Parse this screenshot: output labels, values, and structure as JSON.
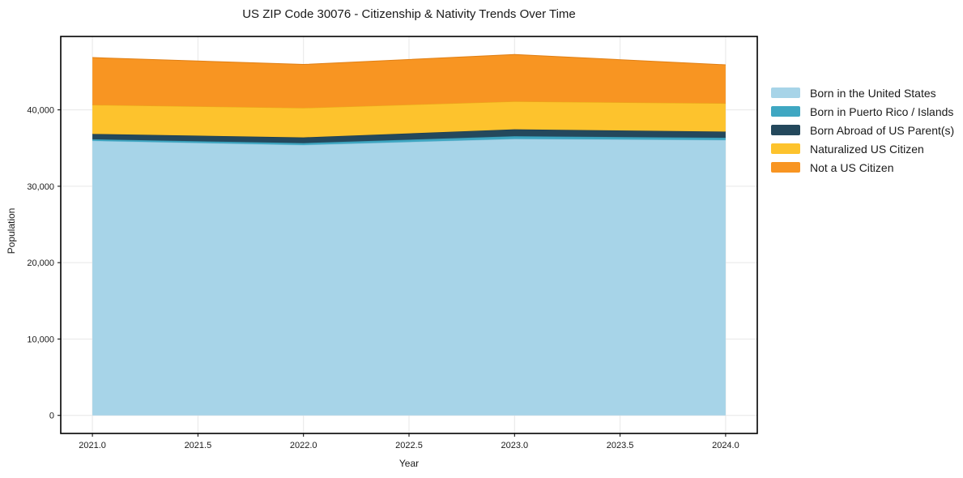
{
  "chart_data": {
    "type": "area",
    "stacked": true,
    "title": "US ZIP Code 30076 - Citizenship & Nativity Trends Over Time",
    "xlabel": "Year",
    "ylabel": "Population",
    "x": [
      2021,
      2022,
      2023,
      2024
    ],
    "series": [
      {
        "name": "Born in the United States",
        "color": "#A7D4E8",
        "edge": "#8CC2DC",
        "values": [
          35950,
          35400,
          36200,
          36050
        ]
      },
      {
        "name": "Born in Puerto Rico / Islands",
        "color": "#3FA7C2",
        "edge": "#3593AC",
        "values": [
          200,
          250,
          350,
          300
        ]
      },
      {
        "name": "Born Abroad of US Parent(s)",
        "color": "#24485C",
        "edge": "#1C3A4B",
        "values": [
          700,
          750,
          900,
          800
        ]
      },
      {
        "name": "Naturalized US Citizen",
        "color": "#FDC32D",
        "edge": "#E8AD17",
        "values": [
          3800,
          3850,
          3650,
          3700
        ]
      },
      {
        "name": "Not a US Citizen",
        "color": "#F89522",
        "edge": "#E07F14",
        "values": [
          6200,
          5700,
          6150,
          5050
        ]
      }
    ],
    "x_ticks": [
      2021.0,
      2021.5,
      2022.0,
      2022.5,
      2023.0,
      2023.5,
      2024.0
    ],
    "x_tick_labels": [
      "2021.0",
      "2021.5",
      "2022.0",
      "2022.5",
      "2023.0",
      "2023.5",
      "2024.0"
    ],
    "y_ticks": [
      0,
      10000,
      20000,
      30000,
      40000
    ],
    "y_tick_labels": [
      "0",
      "10,000",
      "20,000",
      "30,000",
      "40,000"
    ],
    "xlim": [
      2020.85,
      2024.15
    ],
    "ylim": [
      -2363,
      49613
    ],
    "grid": true,
    "grid_color": "#e7e7e7",
    "spine_color": "#000000",
    "legend_position": "right-outside"
  }
}
